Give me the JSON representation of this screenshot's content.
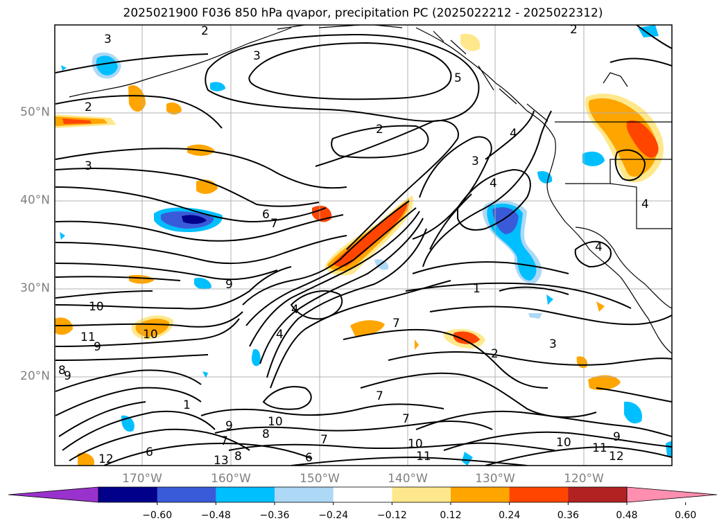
{
  "title": "2025021900 F036 850 hPa qvapor, precipitation PC (2025022212 - 2025022312)",
  "lat_labels": [
    "50°N",
    "40°N",
    "30°N",
    "20°N"
  ],
  "lon_labels": [
    "170°W",
    "160°W",
    "150°W",
    "140°W",
    "130°W",
    "120°W"
  ],
  "colorbar": {
    "colors": [
      "#9932cc",
      "#00008b",
      "#3a5bd9",
      "#00bfff",
      "#add8f6",
      "#ffffff",
      "#ffe88c",
      "#ffa500",
      "#ff4500",
      "#b22222",
      "#ff8fb0"
    ],
    "tick_labels": [
      "−0.60",
      "−0.48",
      "−0.36",
      "−0.24",
      "−0.12",
      "0.12",
      "0.24",
      "0.36",
      "0.48",
      "0.60"
    ],
    "extend": "both"
  },
  "contour_labels": [
    "3",
    "2",
    "3",
    "2",
    "2",
    "5",
    "4",
    "3",
    "2",
    "3",
    "4",
    "6",
    "7",
    "4",
    "9",
    "7",
    "10",
    "9",
    "11",
    "10",
    "9",
    "8",
    "4",
    "7",
    "7",
    "3",
    "2",
    "8",
    "9",
    "10",
    "11",
    "12",
    "6",
    "7",
    "11",
    "10",
    "9",
    "10",
    "8",
    "7",
    "6",
    "12",
    "13",
    "4",
    "4",
    "1",
    "1"
  ]
}
